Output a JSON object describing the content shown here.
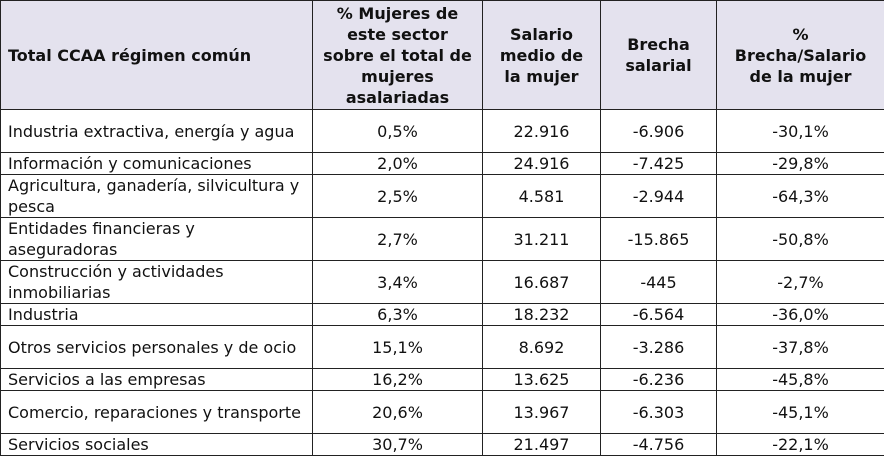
{
  "table": {
    "headers": [
      "Total CCAA régimen común",
      "% Mujeres de este sector sobre el total de mujeres asalariadas",
      "Salario medio de la mujer",
      "Brecha salarial",
      "% Brecha/Salario de la mujer"
    ],
    "rows": [
      {
        "sector": "Industria extractiva, energía y agua",
        "pct_mujeres": "0,5%",
        "salario": "22.916",
        "brecha": "-6.906",
        "pct_brecha": "-30,1%"
      },
      {
        "sector": "Información y comunicaciones",
        "pct_mujeres": "2,0%",
        "salario": "24.916",
        "brecha": "-7.425",
        "pct_brecha": "-29,8%"
      },
      {
        "sector": "Agricultura, ganadería, silvicultura y pesca",
        "pct_mujeres": "2,5%",
        "salario": "4.581",
        "brecha": "-2.944",
        "pct_brecha": "-64,3%"
      },
      {
        "sector": "Entidades financieras y aseguradoras",
        "pct_mujeres": "2,7%",
        "salario": "31.211",
        "brecha": "-15.865",
        "pct_brecha": "-50,8%"
      },
      {
        "sector": "Construcción y actividades inmobiliarias",
        "pct_mujeres": "3,4%",
        "salario": "16.687",
        "brecha": "-445",
        "pct_brecha": "-2,7%"
      },
      {
        "sector": "Industria",
        "pct_mujeres": "6,3%",
        "salario": "18.232",
        "brecha": "-6.564",
        "pct_brecha": "-36,0%"
      },
      {
        "sector": "Otros servicios personales y de ocio",
        "pct_mujeres": "15,1%",
        "salario": "8.692",
        "brecha": "-3.286",
        "pct_brecha": "-37,8%"
      },
      {
        "sector": "Servicios a las empresas",
        "pct_mujeres": "16,2%",
        "salario": "13.625",
        "brecha": "-6.236",
        "pct_brecha": "-45,8%"
      },
      {
        "sector": "Comercio, reparaciones y transporte",
        "pct_mujeres": "20,6%",
        "salario": "13.967",
        "brecha": "-6.303",
        "pct_brecha": "-45,1%"
      },
      {
        "sector": "Servicios sociales",
        "pct_mujeres": "30,7%",
        "salario": "21.497",
        "brecha": "-4.756",
        "pct_brecha": "-22,1%"
      }
    ]
  },
  "colors": {
    "header_bg": "#e4e2ee",
    "border": "#222222"
  }
}
